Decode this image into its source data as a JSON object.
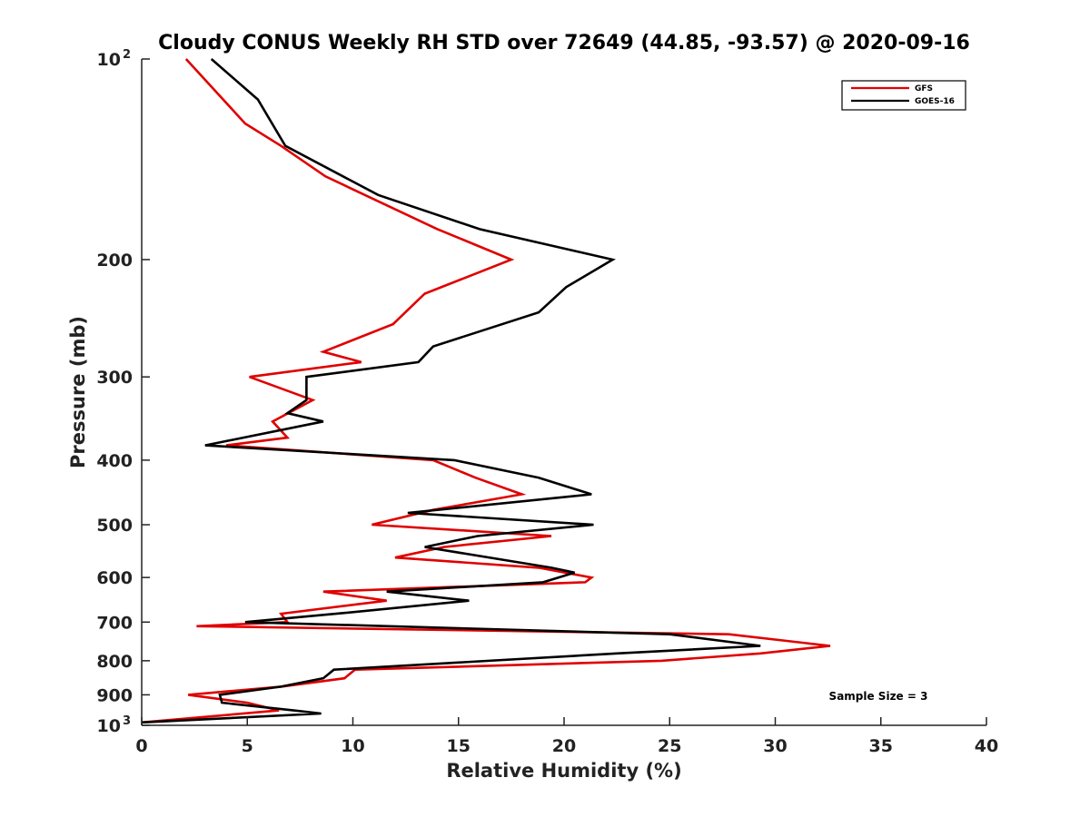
{
  "chart_data": {
    "type": "line",
    "title": "Cloudy CONUS Weekly RH STD over 72649 (44.85, -93.57) @ 2020-09-16",
    "xlabel": "Relative Humidity (%)",
    "ylabel": "Pressure (mb)",
    "xlim": [
      0,
      40
    ],
    "ylim": [
      100,
      1000
    ],
    "y_scale": "log",
    "y_reversed": true,
    "grid": false,
    "legend_position": "top-right",
    "x_ticks": [
      0,
      5,
      10,
      15,
      20,
      25,
      30,
      35,
      40
    ],
    "x_tick_labels": [
      "0",
      "5",
      "10",
      "15",
      "20",
      "25",
      "30",
      "35",
      "40"
    ],
    "y_ticks": [
      100,
      200,
      300,
      400,
      500,
      600,
      700,
      800,
      900,
      1000
    ],
    "y_tick_labels": [
      {
        "base": "10",
        "sup": "2"
      },
      {
        "base": "200"
      },
      {
        "base": "300"
      },
      {
        "base": "400"
      },
      {
        "base": "500"
      },
      {
        "base": "600"
      },
      {
        "base": "700"
      },
      {
        "base": "800"
      },
      {
        "base": "900"
      },
      {
        "base": "10",
        "sup": "3"
      }
    ],
    "annotation": "Sample Size = 3",
    "series": [
      {
        "name": "GFS",
        "color": "#e00000",
        "points": [
          [
            2.1,
            100
          ],
          [
            4.9,
            125
          ],
          [
            6.6,
            135
          ],
          [
            8.7,
            150
          ],
          [
            14.0,
            180
          ],
          [
            17.5,
            200
          ],
          [
            13.4,
            225
          ],
          [
            11.9,
            250
          ],
          [
            8.6,
            275
          ],
          [
            10.4,
            285
          ],
          [
            5.1,
            300
          ],
          [
            8.1,
            325
          ],
          [
            6.2,
            350
          ],
          [
            6.9,
            370
          ],
          [
            4.0,
            380
          ],
          [
            13.8,
            400
          ],
          [
            15.8,
            425
          ],
          [
            18.0,
            450
          ],
          [
            13.8,
            475
          ],
          [
            10.9,
            500
          ],
          [
            19.4,
            520
          ],
          [
            14.3,
            540
          ],
          [
            12.0,
            560
          ],
          [
            18.8,
            580
          ],
          [
            21.3,
            600
          ],
          [
            21.0,
            610
          ],
          [
            8.6,
            630
          ],
          [
            11.6,
            650
          ],
          [
            6.6,
            680
          ],
          [
            6.9,
            700
          ],
          [
            2.6,
            710
          ],
          [
            27.8,
            730
          ],
          [
            32.6,
            760
          ],
          [
            29.3,
            780
          ],
          [
            24.6,
            800
          ],
          [
            10.1,
            825
          ],
          [
            9.6,
            850
          ],
          [
            6.6,
            875
          ],
          [
            2.2,
            900
          ],
          [
            5.0,
            925
          ],
          [
            6.5,
            950
          ],
          [
            0.0,
            990
          ]
        ]
      },
      {
        "name": "GOES-16",
        "color": "#000000",
        "points": [
          [
            3.3,
            100
          ],
          [
            5.5,
            115
          ],
          [
            6.8,
            135
          ],
          [
            11.2,
            160
          ],
          [
            16.0,
            180
          ],
          [
            22.3,
            200
          ],
          [
            20.1,
            220
          ],
          [
            18.8,
            240
          ],
          [
            13.8,
            270
          ],
          [
            13.1,
            285
          ],
          [
            7.8,
            300
          ],
          [
            7.8,
            325
          ],
          [
            6.9,
            340
          ],
          [
            8.6,
            350
          ],
          [
            3.0,
            380
          ],
          [
            14.8,
            400
          ],
          [
            18.8,
            425
          ],
          [
            21.3,
            450
          ],
          [
            12.6,
            480
          ],
          [
            21.4,
            500
          ],
          [
            15.9,
            520
          ],
          [
            13.4,
            540
          ],
          [
            19.4,
            580
          ],
          [
            20.5,
            590
          ],
          [
            19.0,
            610
          ],
          [
            11.6,
            630
          ],
          [
            15.5,
            650
          ],
          [
            9.2,
            680
          ],
          [
            4.9,
            700
          ],
          [
            25.0,
            730
          ],
          [
            29.3,
            760
          ],
          [
            22.5,
            780
          ],
          [
            9.1,
            825
          ],
          [
            8.6,
            850
          ],
          [
            6.6,
            875
          ],
          [
            3.7,
            900
          ],
          [
            3.8,
            925
          ],
          [
            7.2,
            950
          ],
          [
            8.5,
            960
          ],
          [
            0.0,
            990
          ]
        ]
      }
    ]
  }
}
